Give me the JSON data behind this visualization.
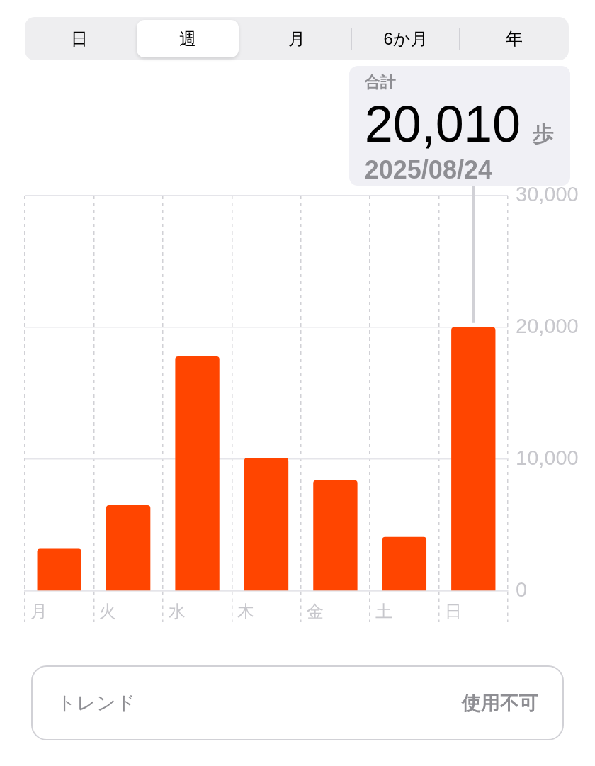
{
  "chart_data": {
    "type": "bar",
    "categories": [
      "月",
      "火",
      "水",
      "木",
      "金",
      "土",
      "日"
    ],
    "values": [
      3200,
      6500,
      17800,
      10100,
      8400,
      4100,
      20010
    ],
    "color": "#ff4500",
    "value_labels": [
      null,
      null,
      null,
      null,
      null,
      null,
      "20,010"
    ],
    "ylim": [
      0,
      30000
    ],
    "yticks": [
      0,
      {
        "value": 10000,
        "label": "10,000"
      },
      {
        "value": 20000,
        "label": "20,000"
      },
      {
        "value": 30000,
        "label": "30,000"
      }
    ],
    "grid": true,
    "annotations": [
      "合計",
      "歩",
      "2025/08/24",
      "日",
      "週",
      "月",
      "6か月",
      "年",
      "トレンド",
      "使用不可"
    ]
  }
}
